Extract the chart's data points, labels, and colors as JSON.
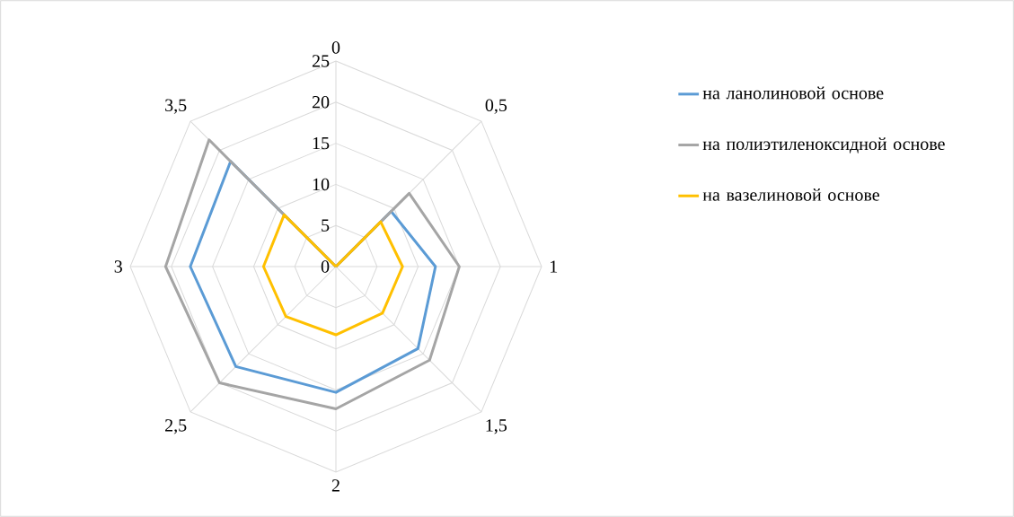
{
  "chart_data": {
    "type": "radar",
    "categories": [
      "0",
      "0,5",
      "1",
      "1,5",
      "2",
      "2,5",
      "3",
      "3,5"
    ],
    "ylim": [
      0,
      25
    ],
    "yticks": [
      0,
      5,
      10,
      15,
      20,
      25
    ],
    "grid": true,
    "legend": "right",
    "series": [
      {
        "name": "на ланолиновой основе",
        "color": "#5b9bd5",
        "values": [
          0,
          9.5,
          12.1,
          14.1,
          15.3,
          17.2,
          17.7,
          18.1
        ]
      },
      {
        "name": "на полиэтиленоксидной основе",
        "color": "#a5a5a5",
        "values": [
          0,
          12.6,
          15,
          16.1,
          17.3,
          20,
          20.7,
          21.8
        ]
      },
      {
        "name": "на вазелиновой основе",
        "color": "#ffc000",
        "values": [
          0,
          7.7,
          8.1,
          8,
          8.3,
          8.6,
          8.8,
          8.9
        ]
      }
    ]
  }
}
